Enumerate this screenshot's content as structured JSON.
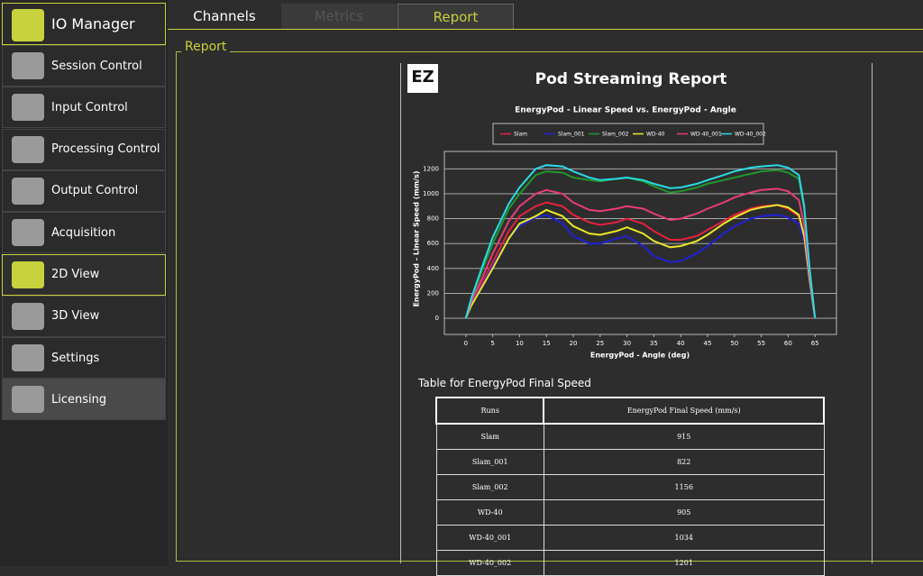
{
  "sidebar": {
    "title": "IO Manager",
    "items": [
      "Session Control",
      "Input Control",
      "Processing Control",
      "Output Control",
      "Acquisition",
      "2D View",
      "3D View",
      "Settings",
      "Licensing"
    ]
  },
  "tabs": [
    "Channels",
    "Metrics",
    "Report"
  ],
  "group_label": "Report",
  "report": {
    "logo": "EZ",
    "title": "Pod Streaming Report"
  },
  "chart_data": {
    "type": "line",
    "title": "EnergyPod - Linear Speed vs. EnergyPod - Angle",
    "x_label": "EnergyPod - Angle (deg)",
    "y_label": "EnergyPod - Linear Speed (mm/s)",
    "x": [
      0,
      1,
      3,
      5,
      8,
      10,
      13,
      15,
      18,
      20,
      23,
      25,
      28,
      30,
      33,
      35,
      38,
      40,
      43,
      45,
      48,
      50,
      53,
      55,
      58,
      60,
      62,
      63,
      64,
      65
    ],
    "series": [
      {
        "name": "Slam",
        "color": "#e8203c",
        "values": [
          0,
          120,
          280,
          450,
          700,
          820,
          900,
          930,
          900,
          830,
          770,
          750,
          770,
          800,
          760,
          700,
          630,
          630,
          660,
          710,
          780,
          830,
          880,
          900,
          910,
          880,
          820,
          650,
          300,
          0
        ]
      },
      {
        "name": "Slam_001",
        "color": "#2020d8",
        "values": [
          0,
          110,
          260,
          420,
          640,
          740,
          810,
          830,
          760,
          660,
          600,
          600,
          640,
          660,
          580,
          500,
          450,
          460,
          520,
          580,
          680,
          740,
          800,
          820,
          830,
          810,
          760,
          620,
          290,
          0
        ]
      },
      {
        "name": "Slam_002",
        "color": "#22962e",
        "values": [
          0,
          150,
          380,
          600,
          880,
          1000,
          1150,
          1180,
          1170,
          1130,
          1110,
          1100,
          1120,
          1130,
          1100,
          1060,
          1010,
          1020,
          1050,
          1080,
          1110,
          1130,
          1160,
          1180,
          1190,
          1170,
          1120,
          880,
          380,
          0
        ]
      },
      {
        "name": "WD-40",
        "color": "#e8e828",
        "values": [
          0,
          100,
          250,
          400,
          640,
          760,
          820,
          870,
          820,
          740,
          680,
          670,
          700,
          730,
          680,
          620,
          570,
          580,
          620,
          670,
          760,
          810,
          870,
          890,
          910,
          890,
          830,
          660,
          310,
          0
        ]
      },
      {
        "name": "WD-40_001",
        "color": "#e83c78",
        "values": [
          0,
          130,
          320,
          520,
          780,
          900,
          1000,
          1030,
          1000,
          930,
          870,
          860,
          880,
          900,
          880,
          840,
          790,
          800,
          840,
          880,
          930,
          970,
          1010,
          1030,
          1040,
          1020,
          950,
          750,
          350,
          0
        ]
      },
      {
        "name": "WD-40_002",
        "color": "#28dce6",
        "values": [
          0,
          160,
          410,
          650,
          920,
          1050,
          1200,
          1230,
          1220,
          1180,
          1130,
          1110,
          1120,
          1130,
          1110,
          1080,
          1045,
          1050,
          1080,
          1110,
          1150,
          1180,
          1210,
          1220,
          1230,
          1210,
          1150,
          900,
          400,
          0
        ]
      }
    ],
    "xlim": [
      -4,
      69
    ],
    "xticks": [
      0,
      5,
      10,
      15,
      20,
      25,
      30,
      35,
      40,
      45,
      50,
      55,
      60,
      65
    ],
    "ylim": [
      -130,
      1340
    ],
    "yticks": [
      0,
      200,
      400,
      600,
      800,
      1000,
      1200
    ],
    "grid": true
  },
  "table": {
    "title": "Table for EnergyPod Final Speed",
    "columns": [
      "Runs",
      "EnergyPod Final Speed (mm/s)"
    ],
    "rows": [
      [
        "Slam",
        915
      ],
      [
        "Slam_001",
        822
      ],
      [
        "Slam_002",
        1156
      ],
      [
        "WD-40",
        905
      ],
      [
        "WD-40_001",
        1034
      ],
      [
        "WD-40_002",
        1201
      ]
    ]
  }
}
